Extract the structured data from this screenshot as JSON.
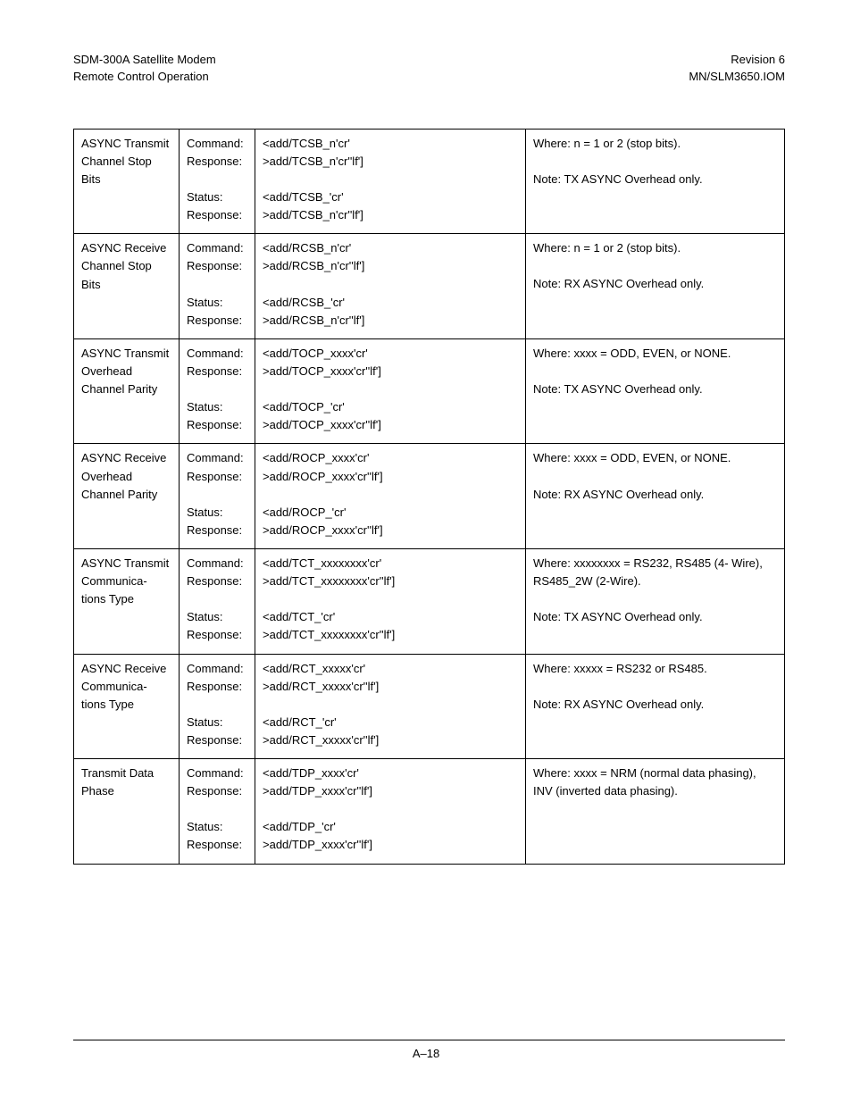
{
  "header": {
    "left_line1": "SDM-300A Satellite Modem",
    "left_line2": "Remote Control Operation",
    "right_line1": "Revision 6",
    "right_line2": "MN/SLM3650.IOM"
  },
  "footer": {
    "page_number": "A–18"
  },
  "rows": [
    {
      "name": "ASYNC Transmit Channel Stop Bits",
      "labels": [
        "Command:",
        "Response:",
        "",
        "Status:",
        "Response:"
      ],
      "cmds": [
        "<add/TCSB_n'cr'",
        ">add/TCSB_n'cr''lf']",
        "",
        "<add/TCSB_'cr'",
        ">add/TCSB_n'cr''lf']"
      ],
      "desc": [
        "Where: n = 1 or 2 (stop bits).",
        "",
        "Note: TX ASYNC Overhead only."
      ]
    },
    {
      "name": "ASYNC Receive Channel Stop Bits",
      "labels": [
        "Command:",
        "Response:",
        "",
        "Status:",
        "Response:"
      ],
      "cmds": [
        "<add/RCSB_n'cr'",
        ">add/RCSB_n'cr''lf']",
        "",
        "<add/RCSB_'cr'",
        ">add/RCSB_n'cr''lf']"
      ],
      "desc": [
        "Where: n = 1 or 2 (stop bits).",
        "",
        "Note: RX ASYNC Overhead only."
      ]
    },
    {
      "name": "ASYNC Transmit Overhead Channel Parity",
      "labels": [
        "Command:",
        "Response:",
        "",
        "Status:",
        "Response:"
      ],
      "cmds": [
        "<add/TOCP_xxxx'cr'",
        ">add/TOCP_xxxx'cr''lf']",
        "",
        "<add/TOCP_'cr'",
        ">add/TOCP_xxxx'cr''lf']"
      ],
      "desc": [
        "Where: xxxx = ODD, EVEN, or NONE.",
        "",
        "Note: TX ASYNC Overhead only."
      ]
    },
    {
      "name": "ASYNC Receive Overhead Channel Parity",
      "labels": [
        "Command:",
        "Response:",
        "",
        "Status:",
        "Response:"
      ],
      "cmds": [
        "<add/ROCP_xxxx'cr'",
        ">add/ROCP_xxxx'cr''lf']",
        "",
        "<add/ROCP_'cr'",
        ">add/ROCP_xxxx'cr''lf']"
      ],
      "desc": [
        "Where: xxxx = ODD, EVEN, or NONE.",
        "",
        "Note: RX ASYNC Overhead only."
      ]
    },
    {
      "name": "ASYNC Transmit Communica-tions Type",
      "labels": [
        "Command:",
        "Response:",
        "",
        "Status:",
        "Response:"
      ],
      "cmds": [
        "<add/TCT_xxxxxxxx'cr'",
        ">add/TCT_xxxxxxxx'cr''lf']",
        "",
        "<add/TCT_'cr'",
        ">add/TCT_xxxxxxxx'cr''lf']"
      ],
      "desc": [
        "Where: xxxxxxxx = RS232, RS485 (4- Wire), RS485_2W (2-Wire).",
        "",
        "Note: TX ASYNC Overhead only."
      ]
    },
    {
      "name": "ASYNC Receive Communica-tions Type",
      "labels": [
        "Command:",
        "Response:",
        "",
        "Status:",
        "Response:"
      ],
      "cmds": [
        "<add/RCT_xxxxx'cr'",
        ">add/RCT_xxxxx'cr''lf']",
        "",
        "<add/RCT_'cr'",
        ">add/RCT_xxxxx'cr''lf']"
      ],
      "desc": [
        "Where: xxxxx = RS232 or RS485.",
        "",
        "Note: RX ASYNC Overhead only."
      ]
    },
    {
      "name": "Transmit Data Phase",
      "labels": [
        "Command:",
        "Response:",
        "",
        "Status:",
        "Response:"
      ],
      "cmds": [
        "<add/TDP_xxxx'cr'",
        ">add/TDP_xxxx'cr''lf']",
        "",
        "<add/TDP_'cr'",
        ">add/TDP_xxxx'cr''lf']"
      ],
      "desc": [
        "Where: xxxx = NRM (normal data phasing), INV (inverted data phasing)."
      ]
    }
  ]
}
